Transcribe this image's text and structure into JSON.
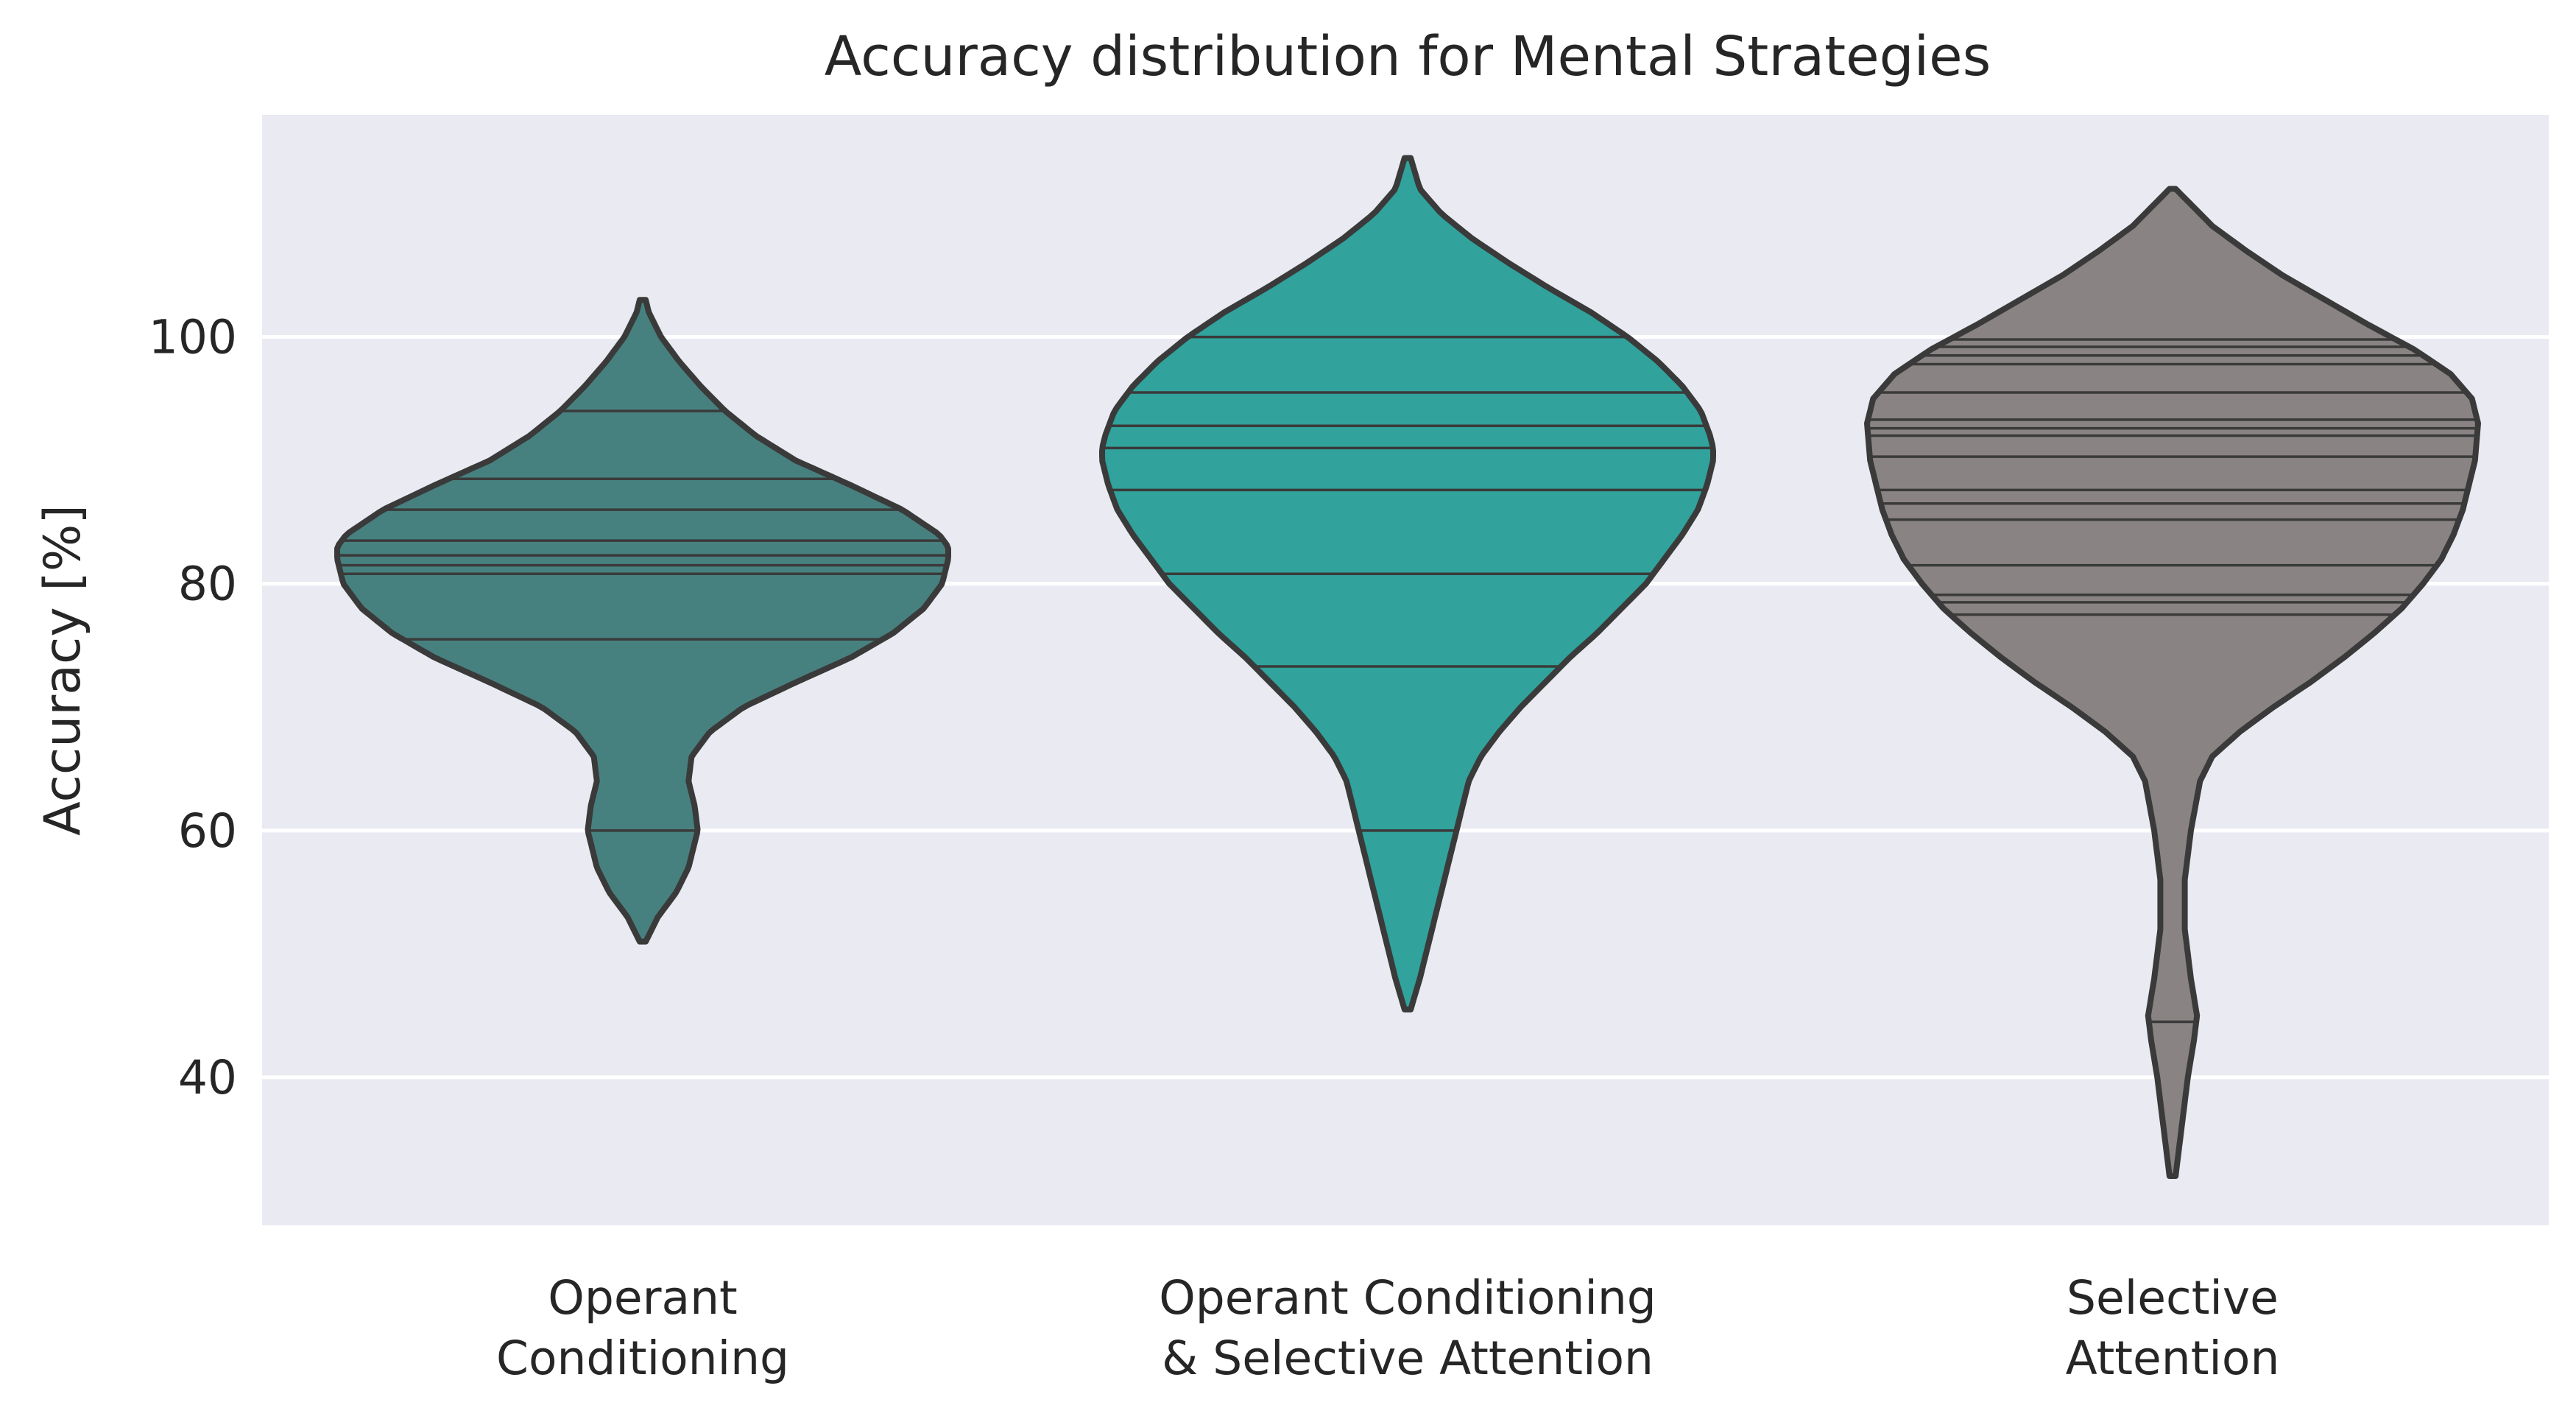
{
  "chart_data": {
    "type": "violin",
    "title": "Accuracy distribution for Mental Strategies",
    "xlabel": "",
    "ylabel": "Accuracy [%]",
    "ylim": [
      28,
      118
    ],
    "yticks": [
      40,
      60,
      80,
      100
    ],
    "grid": true,
    "background": "#eaeaf2",
    "categories": [
      [
        "Operant",
        "Conditioning"
      ],
      [
        "Operant Conditioning",
        "& Selective Attention"
      ],
      [
        "Selective",
        "Attention"
      ]
    ],
    "series": [
      {
        "color": "#47817f",
        "range": [
          51,
          103
        ],
        "density": [
          [
            51,
            0.01
          ],
          [
            53,
            0.05
          ],
          [
            55,
            0.11
          ],
          [
            57,
            0.15
          ],
          [
            59,
            0.17
          ],
          [
            60,
            0.18
          ],
          [
            62,
            0.17
          ],
          [
            64,
            0.15
          ],
          [
            66,
            0.16
          ],
          [
            68,
            0.22
          ],
          [
            70,
            0.33
          ],
          [
            72,
            0.5
          ],
          [
            74,
            0.68
          ],
          [
            76,
            0.82
          ],
          [
            78,
            0.92
          ],
          [
            80,
            0.98
          ],
          [
            82,
            1.0
          ],
          [
            83,
            1.0
          ],
          [
            84,
            0.97
          ],
          [
            86,
            0.85
          ],
          [
            88,
            0.68
          ],
          [
            90,
            0.5
          ],
          [
            92,
            0.37
          ],
          [
            94,
            0.27
          ],
          [
            96,
            0.19
          ],
          [
            98,
            0.12
          ],
          [
            100,
            0.06
          ],
          [
            102,
            0.02
          ],
          [
            103,
            0.01
          ]
        ],
        "observations": [
          60,
          75.5,
          80.8,
          81.5,
          82.3,
          83.5,
          86,
          88.5,
          94
        ]
      },
      {
        "color": "#31a29c",
        "range": [
          45.5,
          114.5
        ],
        "density": [
          [
            45.5,
            0.01
          ],
          [
            48,
            0.04
          ],
          [
            52,
            0.08
          ],
          [
            56,
            0.12
          ],
          [
            60,
            0.16
          ],
          [
            64,
            0.2
          ],
          [
            66,
            0.24
          ],
          [
            68,
            0.3
          ],
          [
            70,
            0.37
          ],
          [
            72,
            0.45
          ],
          [
            74,
            0.53
          ],
          [
            76,
            0.62
          ],
          [
            78,
            0.7
          ],
          [
            80,
            0.78
          ],
          [
            82,
            0.84
          ],
          [
            84,
            0.9
          ],
          [
            86,
            0.95
          ],
          [
            88,
            0.98
          ],
          [
            90,
            1.0
          ],
          [
            91,
            1.0
          ],
          [
            92,
            0.99
          ],
          [
            94,
            0.96
          ],
          [
            96,
            0.9
          ],
          [
            98,
            0.82
          ],
          [
            100,
            0.72
          ],
          [
            102,
            0.6
          ],
          [
            104,
            0.46
          ],
          [
            106,
            0.33
          ],
          [
            108,
            0.21
          ],
          [
            110,
            0.11
          ],
          [
            112,
            0.04
          ],
          [
            114.5,
            0.01
          ]
        ],
        "observations": [
          60,
          73.3,
          80.8,
          87.6,
          91,
          92.8,
          95.5,
          100
        ]
      },
      {
        "color": "#8a8384",
        "range": [
          32,
          112
        ],
        "density": [
          [
            32,
            0.01
          ],
          [
            36,
            0.03
          ],
          [
            40,
            0.05
          ],
          [
            43,
            0.07
          ],
          [
            45,
            0.08
          ],
          [
            48,
            0.06
          ],
          [
            52,
            0.04
          ],
          [
            56,
            0.04
          ],
          [
            60,
            0.06
          ],
          [
            64,
            0.09
          ],
          [
            66,
            0.13
          ],
          [
            68,
            0.22
          ],
          [
            70,
            0.33
          ],
          [
            72,
            0.45
          ],
          [
            74,
            0.56
          ],
          [
            76,
            0.66
          ],
          [
            78,
            0.75
          ],
          [
            80,
            0.82
          ],
          [
            82,
            0.88
          ],
          [
            84,
            0.92
          ],
          [
            86,
            0.95
          ],
          [
            88,
            0.97
          ],
          [
            90,
            0.99
          ],
          [
            93,
            1.0
          ],
          [
            95,
            0.98
          ],
          [
            97,
            0.91
          ],
          [
            99,
            0.79
          ],
          [
            101,
            0.64
          ],
          [
            103,
            0.5
          ],
          [
            105,
            0.36
          ],
          [
            107,
            0.24
          ],
          [
            109,
            0.13
          ],
          [
            111,
            0.05
          ],
          [
            112,
            0.01
          ]
        ],
        "observations": [
          44.5,
          77.5,
          78.5,
          79.1,
          81.5,
          85.2,
          86.5,
          87.6,
          90.3,
          92,
          92.6,
          93.3,
          95.5,
          97.8,
          98.5,
          99.2,
          99.8
        ]
      }
    ]
  }
}
